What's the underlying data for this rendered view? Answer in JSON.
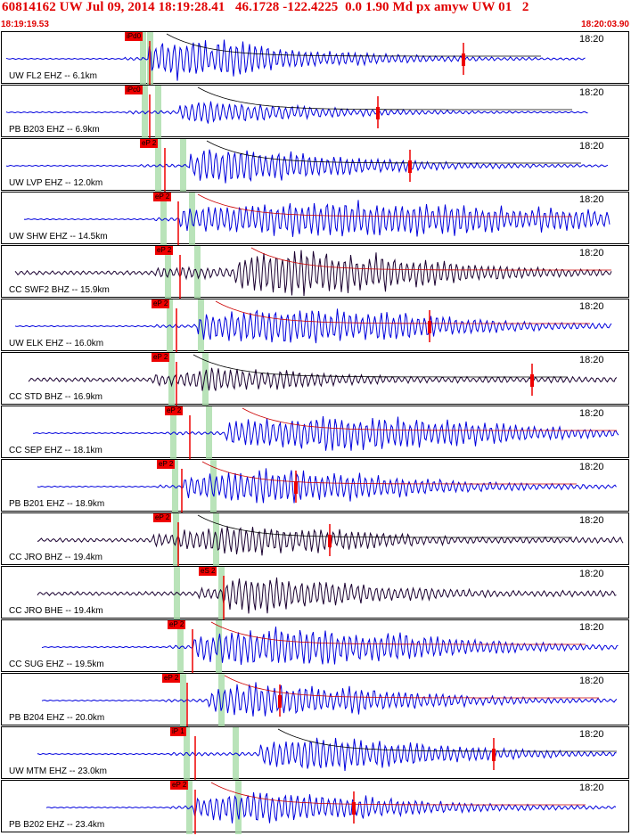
{
  "header": {
    "title": "60814162 UW Jul 09, 2014 18:19:28.41   46.1728 -122.4225  0.0 1.90 Md px amyw UW 01   2",
    "start_time": "18:19:19.53",
    "end_time": "18:20:03.90"
  },
  "colors": {
    "accent": "#e00000",
    "trace_blue": "#0000dd",
    "trace_black": "#1a0030",
    "pick_red": "#ee0000",
    "window_green": "#a8dca8",
    "coda_red": "#cc0000"
  },
  "panels": [
    {
      "station": "UW FL2 EHZ -- 6.1km",
      "time": "18:20",
      "pick": "iPd0",
      "color": "blue"
    },
    {
      "station": "PB B203 EHZ -- 6.9km",
      "time": "18:20",
      "pick": "iPc0",
      "color": "blue"
    },
    {
      "station": "UW LVP EHZ -- 12.0km",
      "time": "18:20",
      "pick": "eP 2",
      "color": "blue"
    },
    {
      "station": "UW SHW EHZ -- 14.5km",
      "time": "18:20",
      "pick": "eP 2",
      "color": "blue"
    },
    {
      "station": "CC SWF2 BHZ -- 15.9km",
      "time": "18:20",
      "pick": "eP 2",
      "color": "black"
    },
    {
      "station": "UW ELK EHZ -- 16.0km",
      "time": "18:20",
      "pick": "eP 2",
      "color": "blue"
    },
    {
      "station": "CC STD BHZ -- 16.9km",
      "time": "18:20",
      "pick": "eP 2",
      "color": "black"
    },
    {
      "station": "CC SEP EHZ -- 18.1km",
      "time": "18:20",
      "pick": "eP 2",
      "color": "blue"
    },
    {
      "station": "PB B201 EHZ -- 18.9km",
      "time": "18:20",
      "pick": "eP 2",
      "color": "blue"
    },
    {
      "station": "CC JRO BHZ -- 19.4km",
      "time": "18:20",
      "pick": "eP 2",
      "color": "black"
    },
    {
      "station": "CC JRO BHE -- 19.4km",
      "time": "18:20",
      "pick": "eS 2",
      "color": "black"
    },
    {
      "station": "CC SUG EHZ -- 19.5km",
      "time": "18:20",
      "pick": "eP 2",
      "color": "blue"
    },
    {
      "station": "PB B204 EHZ -- 20.0km",
      "time": "18:20",
      "pick": "eP 2",
      "color": "blue"
    },
    {
      "station": "UW MTM EHZ -- 23.0km",
      "time": "18:20",
      "pick": "iP 1",
      "color": "blue"
    },
    {
      "station": "PB B202 EHZ -- 23.4km",
      "time": "18:20",
      "pick": "eP 2",
      "color": "blue"
    }
  ]
}
